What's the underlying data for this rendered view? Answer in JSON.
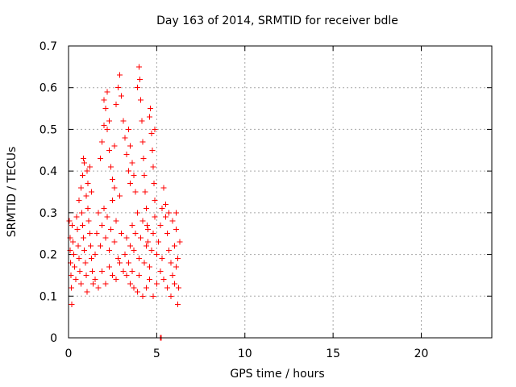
{
  "chart_data": {
    "type": "scatter",
    "title": "Day 163 of 2014, SRMTID for receiver bdle",
    "xlabel": "GPS time / hours",
    "ylabel": "SRMTID / TECUs",
    "xlim": [
      0,
      24
    ],
    "ylim": [
      0,
      0.7
    ],
    "x_ticks": [
      0,
      5,
      10,
      15,
      20
    ],
    "x_tick_labels": [
      "0",
      "5",
      "10",
      "15",
      "20"
    ],
    "y_ticks": [
      0,
      0.1,
      0.2,
      0.3,
      0.4,
      0.5,
      0.6,
      0.7
    ],
    "y_tick_labels": [
      "0",
      "0.1",
      "0.2",
      "0.3",
      "0.4",
      "0.5",
      "0.6",
      "0.7"
    ],
    "grid": true,
    "marker": "+",
    "series": [
      {
        "name": "SRMTID",
        "color": "#ff0000",
        "points": [
          [
            0.05,
            0.28
          ],
          [
            0.08,
            0.24
          ],
          [
            0.1,
            0.21
          ],
          [
            0.12,
            0.18
          ],
          [
            0.14,
            0.15
          ],
          [
            0.16,
            0.12
          ],
          [
            0.18,
            0.08
          ],
          [
            0.2,
            0.27
          ],
          [
            0.25,
            0.23
          ],
          [
            0.3,
            0.2
          ],
          [
            0.35,
            0.17
          ],
          [
            0.4,
            0.14
          ],
          [
            0.45,
            0.29
          ],
          [
            0.5,
            0.26
          ],
          [
            0.55,
            0.22
          ],
          [
            0.6,
            0.19
          ],
          [
            0.65,
            0.16
          ],
          [
            0.7,
            0.13
          ],
          [
            0.75,
            0.3
          ],
          [
            0.8,
            0.27
          ],
          [
            0.85,
            0.24
          ],
          [
            0.9,
            0.21
          ],
          [
            0.95,
            0.18
          ],
          [
            1.0,
            0.15
          ],
          [
            1.05,
            0.11
          ],
          [
            1.1,
            0.31
          ],
          [
            1.15,
            0.28
          ],
          [
            1.2,
            0.25
          ],
          [
            1.25,
            0.22
          ],
          [
            1.3,
            0.19
          ],
          [
            1.35,
            0.16
          ],
          [
            1.4,
            0.13
          ],
          [
            0.6,
            0.33
          ],
          [
            0.7,
            0.36
          ],
          [
            0.8,
            0.39
          ],
          [
            0.9,
            0.42
          ],
          [
            1.0,
            0.34
          ],
          [
            1.1,
            0.37
          ],
          [
            1.2,
            0.41
          ],
          [
            1.3,
            0.35
          ],
          [
            0.85,
            0.43
          ],
          [
            1.05,
            0.4
          ],
          [
            1.5,
            0.2
          ],
          [
            1.6,
            0.25
          ],
          [
            1.7,
            0.3
          ],
          [
            1.8,
            0.22
          ],
          [
            1.9,
            0.27
          ],
          [
            2.0,
            0.31
          ],
          [
            2.1,
            0.24
          ],
          [
            2.2,
            0.29
          ],
          [
            2.3,
            0.21
          ],
          [
            2.4,
            0.26
          ],
          [
            2.5,
            0.33
          ],
          [
            2.6,
            0.23
          ],
          [
            2.7,
            0.28
          ],
          [
            2.8,
            0.19
          ],
          [
            2.9,
            0.34
          ],
          [
            3.0,
            0.25
          ],
          [
            1.5,
            0.14
          ],
          [
            1.7,
            0.12
          ],
          [
            1.9,
            0.16
          ],
          [
            2.1,
            0.13
          ],
          [
            2.3,
            0.17
          ],
          [
            2.5,
            0.15
          ],
          [
            2.7,
            0.14
          ],
          [
            2.9,
            0.18
          ],
          [
            3.1,
            0.16
          ],
          [
            3.3,
            0.15
          ],
          [
            3.5,
            0.13
          ],
          [
            3.7,
            0.12
          ],
          [
            1.8,
            0.43
          ],
          [
            1.9,
            0.47
          ],
          [
            2.0,
            0.51
          ],
          [
            2.1,
            0.55
          ],
          [
            2.2,
            0.59
          ],
          [
            2.0,
            0.57
          ],
          [
            2.2,
            0.5
          ],
          [
            2.3,
            0.45
          ],
          [
            2.4,
            0.41
          ],
          [
            2.5,
            0.38
          ],
          [
            2.6,
            0.36
          ],
          [
            2.3,
            0.52
          ],
          [
            2.6,
            0.46
          ],
          [
            2.7,
            0.56
          ],
          [
            2.8,
            0.6
          ],
          [
            2.9,
            0.63
          ],
          [
            3.0,
            0.58
          ],
          [
            3.1,
            0.52
          ],
          [
            3.2,
            0.48
          ],
          [
            3.3,
            0.44
          ],
          [
            3.4,
            0.4
          ],
          [
            3.5,
            0.37
          ],
          [
            3.4,
            0.5
          ],
          [
            3.5,
            0.46
          ],
          [
            3.6,
            0.42
          ],
          [
            3.7,
            0.39
          ],
          [
            3.8,
            0.35
          ],
          [
            3.9,
            0.6
          ],
          [
            4.0,
            0.65
          ],
          [
            4.05,
            0.62
          ],
          [
            4.1,
            0.57
          ],
          [
            4.15,
            0.52
          ],
          [
            4.2,
            0.47
          ],
          [
            4.25,
            0.43
          ],
          [
            4.3,
            0.39
          ],
          [
            4.35,
            0.35
          ],
          [
            4.4,
            0.31
          ],
          [
            4.45,
            0.27
          ],
          [
            4.5,
            0.23
          ],
          [
            3.2,
            0.2
          ],
          [
            3.3,
            0.24
          ],
          [
            3.4,
            0.18
          ],
          [
            3.5,
            0.22
          ],
          [
            3.6,
            0.27
          ],
          [
            3.7,
            0.21
          ],
          [
            3.8,
            0.25
          ],
          [
            3.9,
            0.3
          ],
          [
            4.0,
            0.19
          ],
          [
            4.1,
            0.24
          ],
          [
            4.2,
            0.28
          ],
          [
            4.3,
            0.18
          ],
          [
            4.4,
            0.22
          ],
          [
            4.5,
            0.26
          ],
          [
            4.6,
            0.17
          ],
          [
            4.7,
            0.21
          ],
          [
            4.8,
            0.25
          ],
          [
            4.9,
            0.29
          ],
          [
            4.6,
            0.53
          ],
          [
            4.7,
            0.49
          ],
          [
            4.75,
            0.45
          ],
          [
            4.8,
            0.41
          ],
          [
            4.85,
            0.37
          ],
          [
            4.9,
            0.33
          ],
          [
            4.65,
            0.55
          ],
          [
            4.9,
            0.5
          ],
          [
            4.0,
            0.15
          ],
          [
            4.2,
            0.1
          ],
          [
            4.4,
            0.12
          ],
          [
            4.6,
            0.14
          ],
          [
            4.8,
            0.1
          ],
          [
            5.0,
            0.13
          ],
          [
            3.6,
            0.16
          ],
          [
            3.9,
            0.11
          ],
          [
            5.0,
            0.2
          ],
          [
            5.1,
            0.23
          ],
          [
            5.2,
            0.27
          ],
          [
            5.3,
            0.31
          ],
          [
            5.4,
            0.36
          ],
          [
            5.5,
            0.29
          ],
          [
            5.6,
            0.25
          ],
          [
            5.7,
            0.21
          ],
          [
            5.8,
            0.18
          ],
          [
            5.9,
            0.15
          ],
          [
            6.0,
            0.22
          ],
          [
            6.1,
            0.26
          ],
          [
            6.2,
            0.19
          ],
          [
            6.3,
            0.23
          ],
          [
            5.2,
            0.16
          ],
          [
            5.4,
            0.14
          ],
          [
            5.6,
            0.12
          ],
          [
            5.8,
            0.1
          ],
          [
            6.0,
            0.13
          ],
          [
            6.1,
            0.17
          ],
          [
            6.2,
            0.08
          ],
          [
            5.5,
            0.32
          ],
          [
            5.7,
            0.3
          ],
          [
            5.9,
            0.28
          ],
          [
            6.1,
            0.3
          ],
          [
            5.3,
            0.19
          ],
          [
            6.25,
            0.12
          ],
          [
            5.2,
            0.0
          ],
          [
            5.25,
            0.0
          ]
        ]
      }
    ]
  }
}
